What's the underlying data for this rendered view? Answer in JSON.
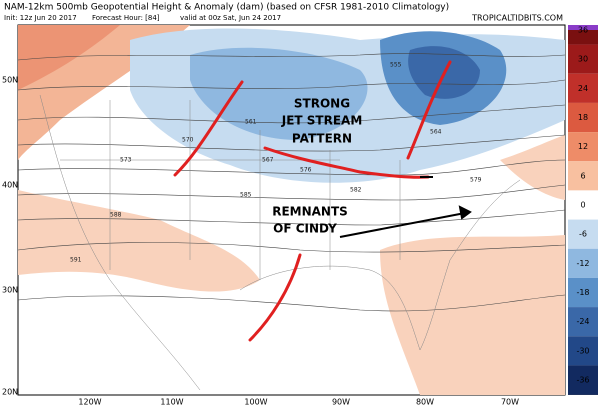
{
  "header": {
    "title": "NAM-12km 500mb Geopotential Height & Anomaly (dam) (based on CFSR 1981-2010 Climatology)",
    "init": "Init: 12z Jun 20 2017",
    "forecast_hour": "Forecast Hour: [84]",
    "valid": "valid at 00z Sat, Jun 24 2017",
    "source": "TROPICALTIDBITS.COM"
  },
  "annotations": [
    "STRONG",
    "JET STREAM",
    "PATTERN",
    "REMNANTS",
    "OF CINDY"
  ],
  "lat_labels": [
    "50N",
    "40N",
    "30N",
    "20N"
  ],
  "lon_labels": [
    "120W",
    "110W",
    "100W",
    "90W",
    "80W",
    "70W"
  ],
  "contour_labels": [
    555,
    561,
    564,
    567,
    570,
    573,
    576,
    579,
    582,
    585,
    588,
    591
  ],
  "colorbar": {
    "ticks": [
      36,
      30,
      24,
      18,
      12,
      6,
      0,
      -6,
      -12,
      -18,
      -24,
      -30,
      -36
    ],
    "colors": [
      "#7a1010",
      "#9c1a1a",
      "#c0302a",
      "#dc5a40",
      "#ee8c68",
      "#f8c0a0",
      "#ffffff",
      "#c6dcf0",
      "#8fb8e0",
      "#5a90c8",
      "#3a68a8",
      "#224888",
      "#122a60",
      "#0a1a40"
    ]
  }
}
